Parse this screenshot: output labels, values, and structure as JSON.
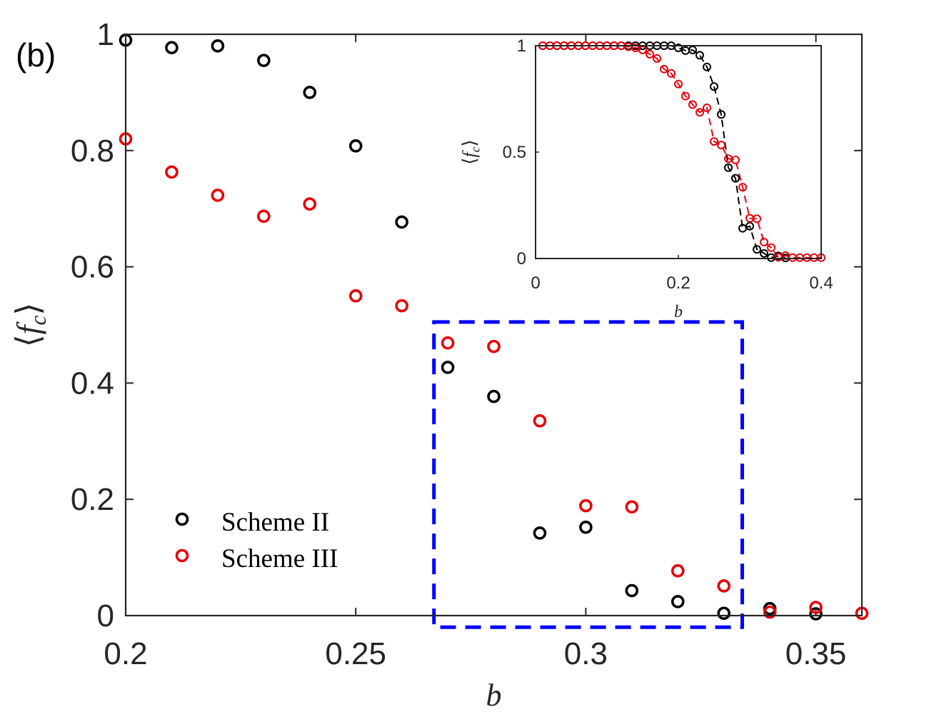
{
  "panel_label": "(b)",
  "colors": {
    "scheme2": "#000000",
    "scheme3": "#e8000b",
    "box": "#0000ff",
    "axis": "#262626"
  },
  "chart_data": [
    {
      "type": "scatter",
      "xlabel": "b",
      "ylabel_base": "f",
      "ylabel_sub": "c",
      "xlim": [
        0.2,
        0.36
      ],
      "ylim": [
        0,
        1
      ],
      "xticks": [
        0.2,
        0.25,
        0.3,
        0.35
      ],
      "xtick_labels": [
        "0.2",
        "0.25",
        "0.3",
        "0.35"
      ],
      "yticks": [
        0,
        0.2,
        0.4,
        0.6,
        0.8,
        1
      ],
      "ytick_labels": [
        "0",
        "0.2",
        "0.4",
        "0.6",
        "0.8",
        "1"
      ],
      "legend": {
        "placement": "bottom-left",
        "entries": [
          "Scheme II",
          "Scheme III"
        ]
      },
      "highlight_box": {
        "x_range": [
          0.267,
          0.334
        ],
        "y_range": [
          -0.02,
          0.505
        ],
        "style": "dashed",
        "color": "blue"
      },
      "series": [
        {
          "name": "Scheme II",
          "x": [
            0.2,
            0.21,
            0.22,
            0.23,
            0.24,
            0.25,
            0.26,
            0.27,
            0.28,
            0.29,
            0.3,
            0.31,
            0.32,
            0.33,
            0.34,
            0.35
          ],
          "y": [
            0.99,
            0.977,
            0.98,
            0.955,
            0.9,
            0.808,
            0.677,
            0.427,
            0.377,
            0.142,
            0.152,
            0.043,
            0.024,
            0.004,
            0.012,
            0.003
          ]
        },
        {
          "name": "Scheme III",
          "x": [
            0.2,
            0.21,
            0.22,
            0.23,
            0.24,
            0.25,
            0.26,
            0.27,
            0.28,
            0.29,
            0.3,
            0.31,
            0.32,
            0.33,
            0.34,
            0.35,
            0.36
          ],
          "y": [
            0.82,
            0.763,
            0.723,
            0.687,
            0.708,
            0.55,
            0.533,
            0.469,
            0.463,
            0.335,
            0.189,
            0.187,
            0.077,
            0.051,
            0.006,
            0.014,
            0.004
          ]
        }
      ]
    },
    {
      "type": "line",
      "inset": true,
      "xlabel": "b",
      "ylabel_base": "f",
      "ylabel_sub": "c",
      "xlim": [
        0,
        0.4
      ],
      "ylim": [
        0,
        1
      ],
      "xticks": [
        0,
        0.2,
        0.4
      ],
      "xtick_labels": [
        "0",
        "0.2",
        "0.4"
      ],
      "yticks": [
        0,
        0.5,
        1
      ],
      "ytick_labels": [
        "0",
        "0.5",
        "1"
      ],
      "series": [
        {
          "name": "Scheme II",
          "line_style": "dashed",
          "x": [
            0.01,
            0.02,
            0.03,
            0.04,
            0.05,
            0.06,
            0.07,
            0.08,
            0.09,
            0.1,
            0.11,
            0.12,
            0.13,
            0.14,
            0.15,
            0.16,
            0.17,
            0.18,
            0.19,
            0.2,
            0.21,
            0.22,
            0.23,
            0.24,
            0.25,
            0.26,
            0.27,
            0.28,
            0.29,
            0.3,
            0.31,
            0.32,
            0.33,
            0.34,
            0.35
          ],
          "y": [
            1.0,
            1.0,
            1.0,
            1.0,
            1.0,
            1.0,
            1.0,
            1.0,
            1.0,
            1.0,
            1.0,
            1.0,
            1.0,
            1.0,
            1.0,
            1.0,
            1.0,
            1.0,
            1.0,
            0.99,
            0.977,
            0.98,
            0.955,
            0.9,
            0.808,
            0.677,
            0.427,
            0.377,
            0.142,
            0.152,
            0.043,
            0.024,
            0.004,
            0.012,
            0.003
          ]
        },
        {
          "name": "Scheme III",
          "line_style": "dashed",
          "x": [
            0.01,
            0.02,
            0.03,
            0.04,
            0.05,
            0.06,
            0.07,
            0.08,
            0.09,
            0.1,
            0.11,
            0.12,
            0.13,
            0.14,
            0.15,
            0.16,
            0.17,
            0.18,
            0.19,
            0.2,
            0.21,
            0.22,
            0.23,
            0.24,
            0.25,
            0.26,
            0.27,
            0.28,
            0.29,
            0.3,
            0.31,
            0.32,
            0.33,
            0.34,
            0.35,
            0.36,
            0.37,
            0.38,
            0.39,
            0.4
          ],
          "y": [
            1.0,
            1.0,
            1.0,
            1.0,
            1.0,
            1.0,
            1.0,
            1.0,
            1.0,
            1.0,
            1.0,
            1.0,
            0.995,
            0.99,
            0.98,
            0.96,
            0.94,
            0.89,
            0.87,
            0.82,
            0.763,
            0.723,
            0.687,
            0.708,
            0.55,
            0.533,
            0.469,
            0.463,
            0.335,
            0.189,
            0.187,
            0.077,
            0.051,
            0.006,
            0.014,
            0.004,
            0.004,
            0.004,
            0.004,
            0.004
          ]
        }
      ]
    }
  ]
}
